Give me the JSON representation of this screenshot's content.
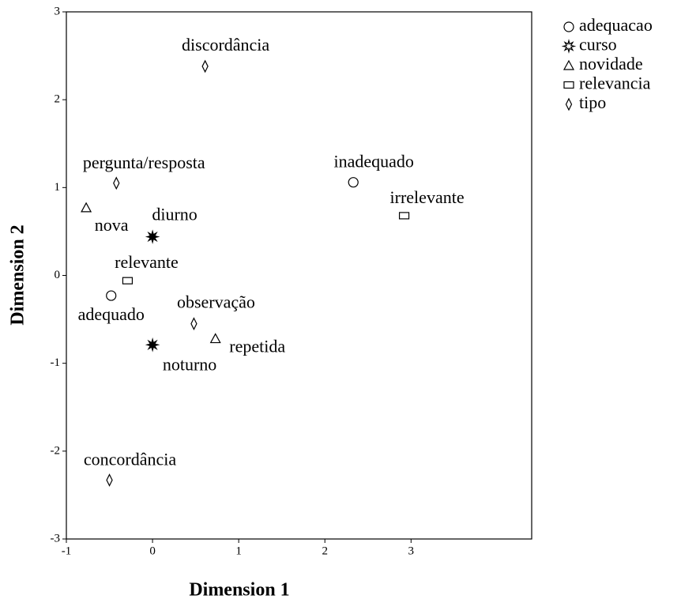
{
  "chart_data": {
    "type": "scatter",
    "xlabel": "Dimension 1",
    "ylabel": "Dimension 2",
    "xlim": [
      -1,
      4.4
    ],
    "ylim": [
      -3,
      3
    ],
    "xticks": [
      -1,
      0,
      1,
      2,
      3
    ],
    "yticks": [
      -3,
      -2,
      -1,
      0,
      1,
      2,
      3
    ],
    "legend": "outside-right-top",
    "series": [
      {
        "name": "adequacao",
        "marker": "circle",
        "color": "#000000",
        "labels": [
          "inadequado",
          "adequado"
        ],
        "x": [
          2.33,
          -0.48
        ],
        "y": [
          1.06,
          -0.23
        ]
      },
      {
        "name": "curso",
        "marker": "star",
        "color": "#000000",
        "labels": [
          "diurno",
          "noturno"
        ],
        "x": [
          0,
          0
        ],
        "y": [
          0.44,
          -0.79
        ]
      },
      {
        "name": "novidade",
        "marker": "triangle",
        "color": "#000000",
        "labels": [
          "nova",
          "repetida"
        ],
        "x": [
          -0.77,
          0.73
        ],
        "y": [
          0.77,
          -0.72
        ]
      },
      {
        "name": "relevancia",
        "marker": "rect",
        "color": "#000000",
        "labels": [
          "relevante",
          "irrelevante"
        ],
        "x": [
          -0.29,
          2.92
        ],
        "y": [
          -0.06,
          0.68
        ]
      },
      {
        "name": "tipo",
        "marker": "diamond",
        "color": "#000000",
        "labels": [
          "discordância",
          "pergunta/resposta",
          "observação",
          "concordância"
        ],
        "x": [
          0.61,
          -0.42,
          0.48,
          -0.5
        ],
        "y": [
          2.38,
          1.05,
          -0.55,
          -2.33
        ]
      }
    ]
  }
}
